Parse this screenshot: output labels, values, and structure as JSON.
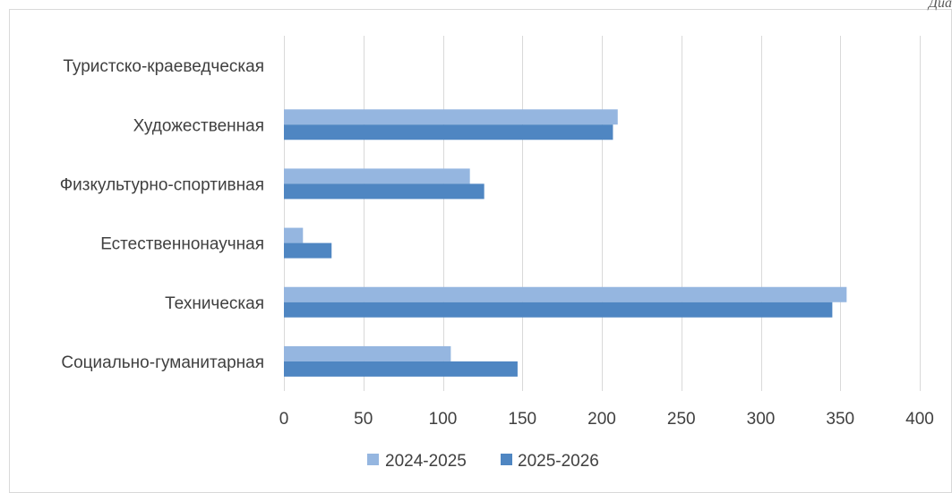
{
  "header_fragment": "Диа",
  "chart_data": {
    "type": "bar",
    "orientation": "horizontal",
    "categories": [
      "Социально-гуманитарная",
      "Техническая",
      "Естественнонаучная",
      "Физкультурно-спортивная",
      "Художественная",
      "Туристско-краеведческая"
    ],
    "series": [
      {
        "name": "2024-2025",
        "color": "#95b6e0",
        "values": [
          105,
          354,
          12,
          117,
          210,
          0
        ]
      },
      {
        "name": "2025-2026",
        "color": "#4f86c2",
        "values": [
          147,
          345,
          30,
          126,
          207,
          0
        ]
      }
    ],
    "xlim": [
      0,
      400
    ],
    "ticks": [
      0,
      50,
      100,
      150,
      200,
      250,
      300,
      350,
      400
    ],
    "grid": "vertical",
    "legend_position": "bottom",
    "title": "",
    "xlabel": "",
    "ylabel": ""
  }
}
